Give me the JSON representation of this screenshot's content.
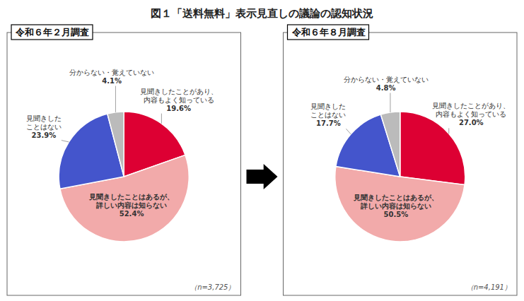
{
  "title": "図１「送料無料」表示見直しの議論の認知状況",
  "chart_data": [
    {
      "type": "pie",
      "title": "令和６年２月調査",
      "categories": [
        "見聞きしたことがあり、\n内容もよく知っている",
        "見聞きしたことはあるが、\n詳しい内容は知らない",
        "見聞きした\nことはない",
        "分からない・覚えていない"
      ],
      "values": [
        19.6,
        52.4,
        23.9,
        4.1
      ],
      "value_labels": [
        "19.6%",
        "52.4%",
        "23.9%",
        "4.1%"
      ],
      "colors": [
        "#dd0033",
        "#f2aaaa",
        "#4455cc",
        "#bbbbbb"
      ],
      "data_labels": true,
      "annotations": [
        "（n=3,725）"
      ]
    },
    {
      "type": "pie",
      "title": "令和６年８月調査",
      "categories": [
        "見聞きしたことがあり、\n内容もよく知っている",
        "見聞きしたことはあるが、\n詳しい内容は知らない",
        "見聞きした\nことはない",
        "分からない・覚えていない"
      ],
      "values": [
        27.0,
        50.5,
        17.7,
        4.8
      ],
      "value_labels": [
        "27.0%",
        "50.5%",
        "17.7%",
        "4.8%"
      ],
      "colors": [
        "#dd0033",
        "#f2aaaa",
        "#4455cc",
        "#bbbbbb"
      ],
      "data_labels": true,
      "annotations": [
        "（n=4,191）"
      ]
    }
  ]
}
